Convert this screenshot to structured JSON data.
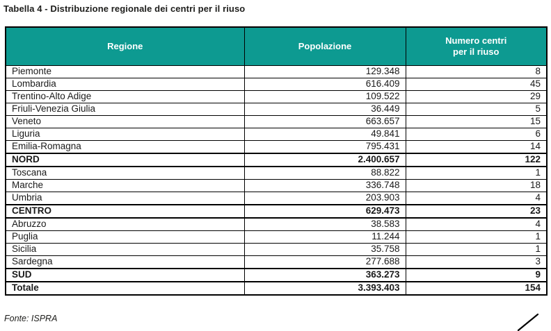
{
  "title": "Tabella 4 - Distribuzione regionale dei centri per il riuso",
  "source": "Fonte: ISPRA",
  "colors": {
    "header_bg": "#0d9a91",
    "header_text": "#ffffff",
    "border": "#000000"
  },
  "table": {
    "headers": [
      "Regione",
      "Popolazione",
      "Numero centri\nper il riuso"
    ],
    "rows": [
      {
        "region": "Piemonte",
        "population": "129.348",
        "centers": "8",
        "bold": false
      },
      {
        "region": "Lombardia",
        "population": "616.409",
        "centers": "45",
        "bold": false
      },
      {
        "region": "Trentino-Alto Adige",
        "population": "109.522",
        "centers": "29",
        "bold": false
      },
      {
        "region": "Friuli-Venezia Giulia",
        "population": "36.449",
        "centers": "5",
        "bold": false
      },
      {
        "region": "Veneto",
        "population": "663.657",
        "centers": "15",
        "bold": false
      },
      {
        "region": "Liguria",
        "population": "49.841",
        "centers": "6",
        "bold": false
      },
      {
        "region": "Emilia-Romagna",
        "population": "795.431",
        "centers": "14",
        "bold": false
      },
      {
        "region": "NORD",
        "population": "2.400.657",
        "centers": "122",
        "bold": true
      },
      {
        "region": "Toscana",
        "population": "88.822",
        "centers": "1",
        "bold": false
      },
      {
        "region": "Marche",
        "population": "336.748",
        "centers": "18",
        "bold": false
      },
      {
        "region": "Umbria",
        "population": "203.903",
        "centers": "4",
        "bold": false
      },
      {
        "region": "CENTRO",
        "population": "629.473",
        "centers": "23",
        "bold": true
      },
      {
        "region": "Abruzzo",
        "population": "38.583",
        "centers": "4",
        "bold": false
      },
      {
        "region": "Puglia",
        "population": "11.244",
        "centers": "1",
        "bold": false
      },
      {
        "region": "Sicilia",
        "population": "35.758",
        "centers": "1",
        "bold": false
      },
      {
        "region": "Sardegna",
        "population": "277.688",
        "centers": "3",
        "bold": false
      },
      {
        "region": "SUD",
        "population": "363.273",
        "centers": "9",
        "bold": true
      },
      {
        "region": "Totale",
        "population": "3.393.403",
        "centers": "154",
        "bold": true
      }
    ]
  }
}
